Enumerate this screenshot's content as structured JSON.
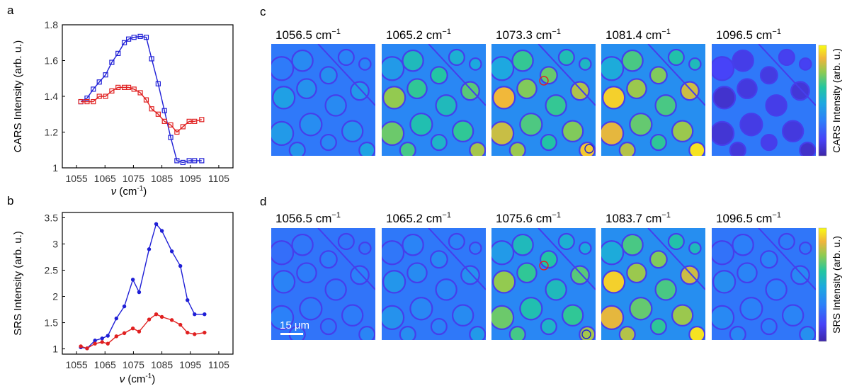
{
  "panel_labels": {
    "a": "a",
    "b": "b",
    "c": "c",
    "d": "d"
  },
  "chart_data": [
    {
      "panel": "a",
      "type": "line",
      "xlabel_var": "ν",
      "xlabel_unit": " (cm",
      "xlabel_sup": "-1",
      "xlabel_close": ")",
      "ylabel": "CARS Intensity (arb. u.)",
      "xlim": [
        1050,
        1110
      ],
      "ylim": [
        1.0,
        1.8
      ],
      "xticks": [
        "1055",
        "1065",
        "1075",
        "1085",
        "1095",
        "1105"
      ],
      "xtick_values": [
        1055,
        1065,
        1075,
        1085,
        1095,
        1105
      ],
      "yticks": [
        "1",
        "1.2",
        "1.4",
        "1.6",
        "1.8"
      ],
      "ytick_values": [
        1.0,
        1.2,
        1.4,
        1.6,
        1.8
      ],
      "marker": "square",
      "grid": false,
      "series": [
        {
          "color": "#1f1fd6",
          "x": [
            1056.5,
            1058.7,
            1060.9,
            1063.0,
            1065.2,
            1067.4,
            1069.6,
            1071.8,
            1073.3,
            1075.2,
            1077.4,
            1079.5,
            1081.4,
            1083.7,
            1085.9,
            1088.1,
            1090.3,
            1092.4,
            1094.6,
            1096.5,
            1099.0
          ],
          "y": [
            1.37,
            1.39,
            1.44,
            1.48,
            1.52,
            1.59,
            1.64,
            1.7,
            1.72,
            1.73,
            1.735,
            1.73,
            1.61,
            1.47,
            1.32,
            1.17,
            1.04,
            1.03,
            1.04,
            1.04,
            1.04
          ]
        },
        {
          "color": "#e02020",
          "x": [
            1056.5,
            1058.7,
            1060.9,
            1063.0,
            1065.2,
            1067.4,
            1069.6,
            1071.8,
            1073.3,
            1075.2,
            1077.4,
            1079.5,
            1081.4,
            1083.7,
            1085.9,
            1088.1,
            1090.3,
            1092.4,
            1094.6,
            1096.5,
            1099.0
          ],
          "y": [
            1.37,
            1.37,
            1.37,
            1.4,
            1.4,
            1.43,
            1.45,
            1.45,
            1.45,
            1.44,
            1.42,
            1.38,
            1.33,
            1.3,
            1.26,
            1.24,
            1.2,
            1.23,
            1.26,
            1.26,
            1.27
          ]
        }
      ]
    },
    {
      "panel": "b",
      "type": "line",
      "xlabel_var": "ν",
      "xlabel_unit": " (cm",
      "xlabel_sup": "-1",
      "xlabel_close": ")",
      "ylabel": "SRS Intensity (arb. u.)",
      "xlim": [
        1050,
        1110
      ],
      "ylim": [
        0.9,
        3.6
      ],
      "xticks": [
        "1055",
        "1065",
        "1075",
        "1085",
        "1095",
        "1105"
      ],
      "xtick_values": [
        1055,
        1065,
        1075,
        1085,
        1095,
        1105
      ],
      "yticks": [
        "1",
        "1.5",
        "2",
        "2.5",
        "3",
        "3.5"
      ],
      "ytick_values": [
        1.0,
        1.5,
        2.0,
        2.5,
        3.0,
        3.5
      ],
      "marker": "circle",
      "grid": false,
      "series": [
        {
          "color": "#1f1fd6",
          "x": [
            1056.5,
            1058.7,
            1061.5,
            1064.0,
            1066.0,
            1069.0,
            1071.8,
            1074.8,
            1077.0,
            1080.5,
            1083.0,
            1085.0,
            1088.5,
            1091.5,
            1094.0,
            1096.5,
            1100.0
          ],
          "y": [
            1.03,
            1.01,
            1.16,
            1.2,
            1.25,
            1.58,
            1.81,
            2.32,
            2.08,
            2.9,
            3.38,
            3.25,
            2.86,
            2.58,
            1.93,
            1.66,
            1.66
          ]
        },
        {
          "color": "#e02020",
          "x": [
            1056.5,
            1058.7,
            1061.5,
            1064.0,
            1066.0,
            1069.0,
            1071.8,
            1074.8,
            1077.0,
            1080.5,
            1083.0,
            1085.0,
            1088.5,
            1091.5,
            1094.0,
            1096.5,
            1100.0
          ],
          "y": [
            1.05,
            1.01,
            1.1,
            1.13,
            1.1,
            1.24,
            1.3,
            1.39,
            1.33,
            1.56,
            1.66,
            1.61,
            1.55,
            1.46,
            1.31,
            1.28,
            1.31
          ]
        }
      ]
    }
  ],
  "cars_images": {
    "labels": [
      {
        "value": "1056.5",
        "unit": " cm",
        "sup": "−1"
      },
      {
        "value": "1065.2",
        "unit": " cm",
        "sup": "−1"
      },
      {
        "value": "1073.3",
        "unit": " cm",
        "sup": "−1"
      },
      {
        "value": "1081.4",
        "unit": " cm",
        "sup": "−1"
      },
      {
        "value": "1096.5",
        "unit": " cm",
        "sup": "−1"
      }
    ],
    "colorbar_label": "CARS Intensity (arb. u.)",
    "brightness": [
      0.22,
      0.62,
      0.8,
      0.86,
      0.18
    ]
  },
  "srs_images": {
    "labels": [
      {
        "value": "1056.5",
        "unit": " cm",
        "sup": "−1"
      },
      {
        "value": "1065.2",
        "unit": " cm",
        "sup": "−1"
      },
      {
        "value": "1075.6",
        "unit": " cm",
        "sup": "−1"
      },
      {
        "value": "1083.7",
        "unit": " cm",
        "sup": "−1"
      },
      {
        "value": "1096.5",
        "unit": " cm",
        "sup": "−1"
      }
    ],
    "colorbar_label": "SRS Intensity (arb. u.)",
    "brightness": [
      0.1,
      0.18,
      0.62,
      0.86,
      0.14
    ],
    "scalebar_label": "15 μm"
  },
  "colors": {
    "blue_series": "#1f1fd6",
    "red_series": "#e02020",
    "colormap": [
      "#3e26a8",
      "#4743f8",
      "#2c7ff9",
      "#1ca9df",
      "#23c6a0",
      "#8fcb51",
      "#f0b43c",
      "#f9fb14"
    ]
  }
}
